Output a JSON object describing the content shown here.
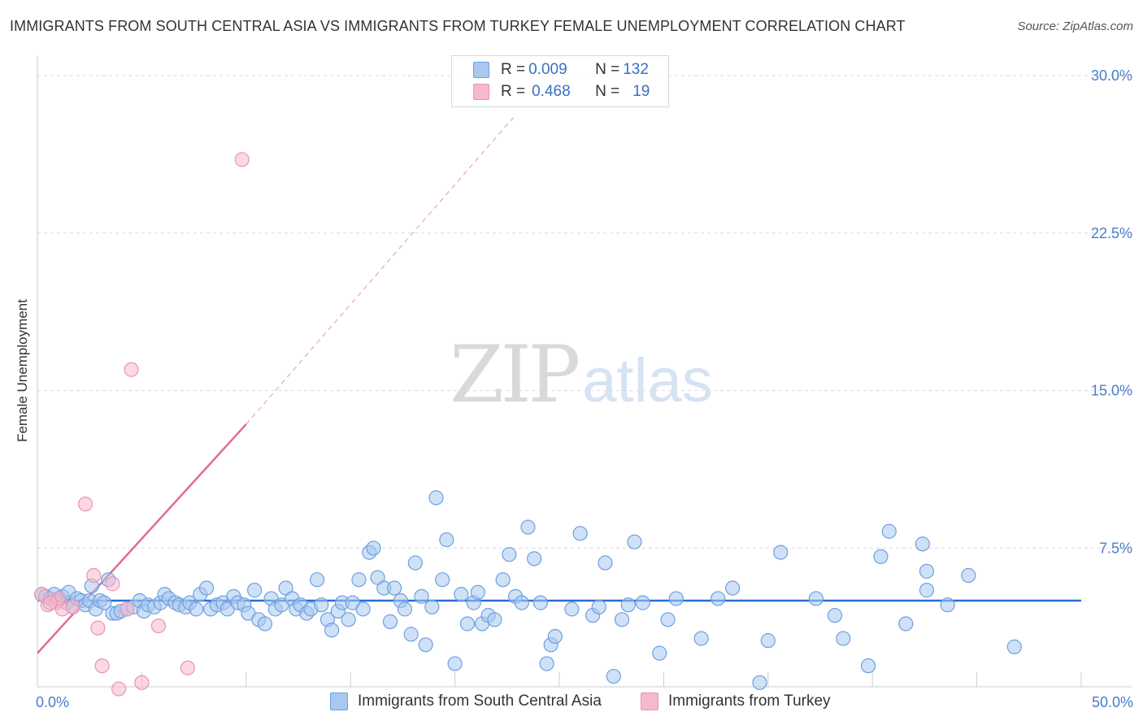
{
  "title": "IMMIGRANTS FROM SOUTH CENTRAL ASIA VS IMMIGRANTS FROM TURKEY FEMALE UNEMPLOYMENT CORRELATION CHART",
  "source": "Source: ZipAtlas.com",
  "watermark": {
    "zip": "ZIP",
    "atlas": "atlas"
  },
  "legend": {
    "rows": [
      {
        "r_label": "R = ",
        "r_value": "0.009",
        "n_label": "N = ",
        "n_value": "132",
        "color": "#a8c8f0"
      },
      {
        "r_label": "R = ",
        "r_value": "0.468",
        "n_label": "N = ",
        "n_value": "19",
        "color": "#f7b8cb"
      }
    ]
  },
  "chart_data": {
    "type": "scatter",
    "title": "IMMIGRANTS FROM SOUTH CENTRAL ASIA VS IMMIGRANTS FROM TURKEY FEMALE UNEMPLOYMENT CORRELATION CHART",
    "xlabel": "",
    "ylabel": "Female Unemployment",
    "xlim": [
      0,
      50
    ],
    "ylim": [
      0.9,
      30.5
    ],
    "x_ticks_labels": [
      "0.0%",
      "50.0%"
    ],
    "y_ticks": [
      7.5,
      15.0,
      22.5,
      30.0
    ],
    "y_ticks_labels": [
      "7.5%",
      "15.0%",
      "22.5%",
      "30.0%"
    ],
    "grid": true,
    "legend_position": "bottom",
    "series": [
      {
        "name": "Immigrants from South Central Asia",
        "color": "#a8c8f0",
        "stroke": "#6f9fe0",
        "trend": {
          "x": [
            0,
            50
          ],
          "y": [
            5.0,
            5.0
          ],
          "color": "#2a6dd3"
        },
        "points": [
          [
            0.2,
            5.3
          ],
          [
            0.4,
            5.2
          ],
          [
            0.6,
            5.1
          ],
          [
            0.8,
            5.3
          ],
          [
            1.0,
            5.0
          ],
          [
            1.2,
            5.2
          ],
          [
            1.4,
            4.9
          ],
          [
            1.5,
            5.4
          ],
          [
            1.7,
            4.7
          ],
          [
            1.9,
            5.1
          ],
          [
            2.1,
            5.0
          ],
          [
            2.3,
            4.8
          ],
          [
            2.5,
            5.0
          ],
          [
            2.6,
            5.7
          ],
          [
            2.8,
            4.6
          ],
          [
            3.0,
            5.0
          ],
          [
            3.2,
            4.9
          ],
          [
            3.4,
            6.0
          ],
          [
            3.6,
            4.4
          ],
          [
            3.8,
            4.4
          ],
          [
            4.0,
            4.5
          ],
          [
            4.3,
            4.6
          ],
          [
            4.6,
            4.7
          ],
          [
            4.9,
            5.0
          ],
          [
            5.1,
            4.5
          ],
          [
            5.3,
            4.8
          ],
          [
            5.6,
            4.7
          ],
          [
            5.9,
            4.9
          ],
          [
            6.1,
            5.3
          ],
          [
            6.3,
            5.1
          ],
          [
            6.6,
            4.9
          ],
          [
            6.8,
            4.8
          ],
          [
            7.1,
            4.7
          ],
          [
            7.3,
            4.9
          ],
          [
            7.6,
            4.6
          ],
          [
            7.8,
            5.3
          ],
          [
            8.1,
            5.6
          ],
          [
            8.3,
            4.6
          ],
          [
            8.6,
            4.8
          ],
          [
            8.9,
            4.9
          ],
          [
            9.1,
            4.6
          ],
          [
            9.4,
            5.2
          ],
          [
            9.6,
            4.9
          ],
          [
            9.9,
            4.8
          ],
          [
            10.1,
            4.4
          ],
          [
            10.4,
            5.5
          ],
          [
            10.6,
            4.1
          ],
          [
            10.9,
            3.9
          ],
          [
            11.2,
            5.1
          ],
          [
            11.4,
            4.6
          ],
          [
            11.7,
            4.8
          ],
          [
            11.9,
            5.6
          ],
          [
            12.2,
            5.1
          ],
          [
            12.4,
            4.6
          ],
          [
            12.6,
            4.8
          ],
          [
            12.9,
            4.4
          ],
          [
            13.1,
            4.6
          ],
          [
            13.4,
            6.0
          ],
          [
            13.6,
            4.8
          ],
          [
            13.9,
            4.1
          ],
          [
            14.1,
            3.6
          ],
          [
            14.4,
            4.5
          ],
          [
            14.6,
            4.9
          ],
          [
            14.9,
            4.1
          ],
          [
            15.1,
            4.9
          ],
          [
            15.4,
            6.0
          ],
          [
            15.6,
            4.6
          ],
          [
            15.9,
            7.3
          ],
          [
            16.1,
            7.5
          ],
          [
            16.3,
            6.1
          ],
          [
            16.6,
            5.6
          ],
          [
            16.9,
            4.0
          ],
          [
            17.1,
            5.6
          ],
          [
            17.4,
            5.0
          ],
          [
            17.6,
            4.6
          ],
          [
            17.9,
            3.4
          ],
          [
            18.1,
            6.8
          ],
          [
            18.4,
            5.2
          ],
          [
            18.6,
            2.9
          ],
          [
            18.9,
            4.7
          ],
          [
            19.1,
            9.9
          ],
          [
            19.4,
            6.0
          ],
          [
            19.6,
            7.9
          ],
          [
            20.0,
            2.0
          ],
          [
            20.3,
            5.3
          ],
          [
            20.6,
            3.9
          ],
          [
            20.9,
            4.9
          ],
          [
            21.1,
            5.4
          ],
          [
            21.3,
            3.9
          ],
          [
            21.6,
            4.3
          ],
          [
            21.9,
            4.1
          ],
          [
            22.3,
            6.0
          ],
          [
            22.6,
            7.2
          ],
          [
            22.9,
            5.2
          ],
          [
            23.2,
            4.9
          ],
          [
            23.5,
            8.5
          ],
          [
            23.8,
            7.0
          ],
          [
            24.1,
            4.9
          ],
          [
            24.4,
            2.0
          ],
          [
            24.6,
            2.9
          ],
          [
            24.8,
            3.3
          ],
          [
            25.6,
            4.6
          ],
          [
            26.0,
            8.2
          ],
          [
            26.6,
            4.3
          ],
          [
            26.9,
            4.7
          ],
          [
            27.2,
            6.8
          ],
          [
            27.6,
            1.4
          ],
          [
            28.0,
            4.1
          ],
          [
            28.3,
            4.8
          ],
          [
            28.6,
            7.8
          ],
          [
            29.0,
            4.9
          ],
          [
            29.8,
            2.5
          ],
          [
            30.2,
            4.1
          ],
          [
            30.6,
            5.1
          ],
          [
            31.8,
            3.2
          ],
          [
            32.6,
            5.1
          ],
          [
            33.3,
            5.6
          ],
          [
            34.6,
            1.1
          ],
          [
            35.0,
            3.1
          ],
          [
            35.6,
            7.3
          ],
          [
            37.3,
            5.1
          ],
          [
            38.2,
            4.3
          ],
          [
            38.6,
            3.2
          ],
          [
            39.8,
            1.9
          ],
          [
            40.4,
            7.1
          ],
          [
            40.8,
            8.3
          ],
          [
            41.6,
            3.9
          ],
          [
            42.4,
            7.7
          ],
          [
            42.6,
            6.4
          ],
          [
            42.6,
            5.5
          ],
          [
            43.6,
            4.8
          ],
          [
            44.6,
            6.2
          ],
          [
            46.8,
            2.8
          ]
        ]
      },
      {
        "name": "Immigrants from Turkey",
        "color": "#f7b8cb",
        "stroke": "#e896b0",
        "trend": {
          "x": [
            0,
            10
          ],
          "y": [
            2.5,
            13.4
          ],
          "color": "#e06b95",
          "extended_to": [
            22.8,
            28.0
          ]
        },
        "points": [
          [
            0.2,
            5.3
          ],
          [
            0.5,
            4.8
          ],
          [
            0.9,
            4.9
          ],
          [
            1.2,
            4.6
          ],
          [
            1.7,
            4.7
          ],
          [
            2.3,
            9.6
          ],
          [
            2.7,
            6.2
          ],
          [
            2.9,
            3.7
          ],
          [
            3.1,
            1.9
          ],
          [
            3.6,
            5.8
          ],
          [
            3.9,
            0.8
          ],
          [
            4.3,
            4.6
          ],
          [
            4.5,
            16.0
          ],
          [
            5.0,
            1.1
          ],
          [
            5.8,
            3.8
          ],
          [
            7.2,
            1.8
          ],
          [
            9.8,
            26.0
          ],
          [
            1.0,
            5.1
          ],
          [
            0.6,
            4.9
          ]
        ]
      }
    ]
  }
}
